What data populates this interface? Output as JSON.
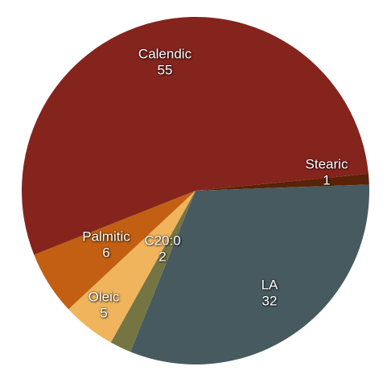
{
  "chart_data": {
    "type": "pie",
    "categories": [
      "Stearic",
      "LA",
      "C20:0",
      "Oleic",
      "Palmitic",
      "Calendic"
    ],
    "values": [
      1,
      32,
      2,
      5,
      6,
      55
    ],
    "colors": [
      "#5a2208",
      "#475a5f",
      "#757544",
      "#f0b45c",
      "#c35f12",
      "#85241d"
    ]
  }
}
